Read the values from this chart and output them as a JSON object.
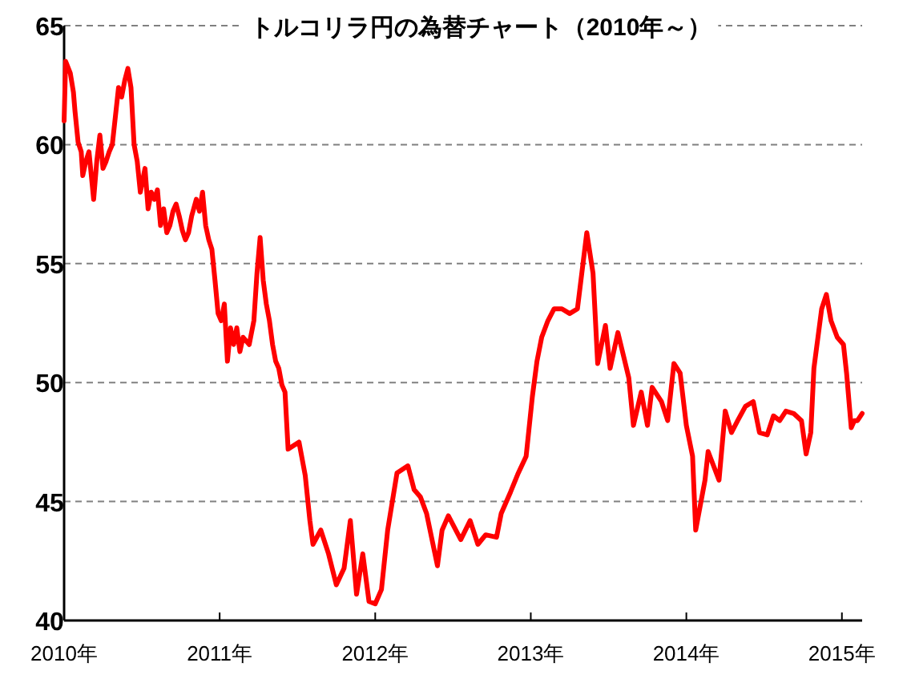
{
  "chart_data": {
    "type": "line",
    "title": "トルコリラ円の為替チャート（2010年～）",
    "xlim": [
      2010,
      2015.13
    ],
    "ylim": [
      40,
      65
    ],
    "xticks": [
      {
        "value": 2010,
        "label": "2010年"
      },
      {
        "value": 2011,
        "label": "2011年"
      },
      {
        "value": 2012,
        "label": "2012年"
      },
      {
        "value": 2013,
        "label": "2013年"
      },
      {
        "value": 2014,
        "label": "2014年"
      },
      {
        "value": 2015,
        "label": "2015年"
      }
    ],
    "yticks": [
      40,
      45,
      50,
      55,
      60,
      65
    ],
    "grid": "y",
    "marker": "none",
    "line_style": "solid",
    "series": [
      {
        "color": "#ff0000",
        "x": [
          2010.0,
          2010.01,
          2010.04,
          2010.06,
          2010.07,
          2010.09,
          2010.11,
          2010.12,
          2010.14,
          2010.16,
          2010.19,
          2010.21,
          2010.23,
          2010.25,
          2010.27,
          2010.29,
          2010.31,
          2010.33,
          2010.35,
          2010.37,
          2010.39,
          2010.41,
          2010.43,
          2010.45,
          2010.47,
          2010.49,
          2010.52,
          2010.54,
          2010.56,
          2010.58,
          2010.6,
          2010.62,
          2010.64,
          2010.66,
          2010.68,
          2010.7,
          2010.72,
          2010.74,
          2010.76,
          2010.78,
          2010.8,
          2010.82,
          2010.85,
          2010.87,
          2010.89,
          2010.91,
          2010.93,
          2010.95,
          2010.97,
          2010.99,
          2011.01,
          2011.03,
          2011.05,
          2011.07,
          2011.09,
          2011.11,
          2011.13,
          2011.15,
          2011.19,
          2011.22,
          2011.24,
          2011.26,
          2011.28,
          2011.3,
          2011.32,
          2011.34,
          2011.36,
          2011.38,
          2011.4,
          2011.42,
          2011.44,
          2011.51,
          2011.55,
          2011.58,
          2011.6,
          2011.65,
          2011.7,
          2011.75,
          2011.8,
          2011.84,
          2011.88,
          2011.92,
          2011.96,
          2012.0,
          2012.04,
          2012.08,
          2012.14,
          2012.21,
          2012.25,
          2012.29,
          2012.33,
          2012.4,
          2012.43,
          2012.47,
          2012.55,
          2012.61,
          2012.66,
          2012.71,
          2012.78,
          2012.81,
          2012.87,
          2012.92,
          2012.97,
          2013.01,
          2013.04,
          2013.07,
          2013.11,
          2013.15,
          2013.2,
          2013.25,
          2013.3,
          2013.36,
          2013.4,
          2013.43,
          2013.48,
          2013.51,
          2013.56,
          2013.63,
          2013.66,
          2013.71,
          2013.75,
          2013.78,
          2013.84,
          2013.88,
          2013.92,
          2013.96,
          2014.0,
          2014.04,
          2014.06,
          2014.12,
          2014.14,
          2014.21,
          2014.25,
          2014.29,
          2014.33,
          2014.38,
          2014.43,
          2014.47,
          2014.52,
          2014.56,
          2014.6,
          2014.64,
          2014.69,
          2014.74,
          2014.77,
          2014.8,
          2014.82,
          2014.87,
          2014.9,
          2014.93,
          2014.97,
          2015.01,
          2015.03,
          2015.06,
          2015.08,
          2015.1,
          2015.13
        ],
        "values": [
          61.0,
          63.5,
          63.0,
          62.2,
          61.4,
          60.1,
          59.7,
          58.7,
          59.3,
          59.7,
          57.7,
          59.3,
          60.4,
          59.0,
          59.3,
          59.7,
          60.0,
          61.2,
          62.4,
          62.0,
          62.7,
          63.2,
          62.4,
          60.0,
          59.3,
          58.0,
          59.0,
          57.3,
          58.0,
          57.7,
          58.1,
          56.6,
          57.3,
          56.3,
          56.6,
          57.2,
          57.5,
          57.0,
          56.4,
          56.0,
          56.3,
          57.0,
          57.7,
          57.2,
          58.0,
          56.6,
          56.0,
          55.6,
          54.3,
          52.9,
          52.6,
          53.3,
          50.9,
          52.3,
          51.6,
          52.3,
          51.3,
          51.9,
          51.6,
          52.6,
          54.6,
          56.1,
          54.3,
          53.3,
          52.6,
          51.6,
          50.9,
          50.6,
          49.9,
          49.6,
          47.2,
          47.5,
          46.1,
          44.2,
          43.2,
          43.8,
          42.8,
          41.5,
          42.2,
          44.2,
          41.1,
          42.8,
          40.8,
          40.7,
          41.3,
          43.8,
          46.2,
          46.5,
          45.5,
          45.2,
          44.5,
          42.3,
          43.8,
          44.4,
          43.4,
          44.2,
          43.2,
          43.6,
          43.5,
          44.5,
          45.4,
          46.2,
          46.9,
          49.4,
          50.9,
          51.9,
          52.6,
          53.1,
          53.1,
          52.9,
          53.1,
          56.3,
          54.6,
          50.8,
          52.4,
          50.6,
          52.1,
          50.2,
          48.2,
          49.6,
          48.2,
          49.8,
          49.2,
          48.4,
          50.8,
          50.4,
          48.2,
          46.9,
          43.8,
          45.9,
          47.1,
          45.9,
          48.8,
          47.9,
          48.4,
          49.0,
          49.2,
          47.9,
          47.8,
          48.6,
          48.4,
          48.8,
          48.7,
          48.4,
          47.0,
          47.9,
          50.6,
          53.1,
          53.7,
          52.6,
          51.9,
          51.6,
          50.4,
          48.1,
          48.4,
          48.4,
          48.7
        ]
      }
    ]
  }
}
